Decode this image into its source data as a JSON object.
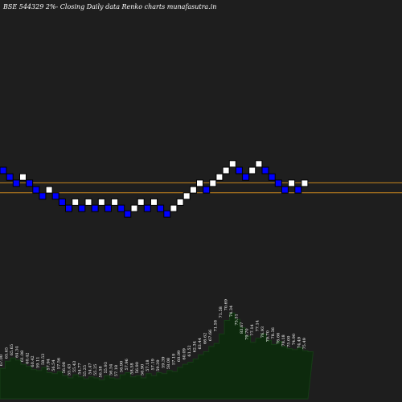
{
  "title": "BSE 544329 2%-  Closing Daily data  Renko  charts munafasutra.in",
  "colors": {
    "background": "#000000",
    "panel": "#1e1e1e",
    "up_brick": "#ffffff",
    "down_brick": "#0000ff",
    "brick_border": "#000000",
    "reference_line": "#c8861e",
    "volume_fill": "#0d2a0d",
    "volume_edge": "#163d16",
    "label_color": "#ffffff"
  },
  "chart_data": {
    "type": "renko",
    "title": "BSE 544329 2%-  Closing Daily data  Renko  charts munafasutra.in",
    "brick_size_percent": 2,
    "reference_lines": [
      66.6,
      64.5
    ],
    "bricks": [
      {
        "dir": "down",
        "level": 69.9
      },
      {
        "dir": "down",
        "level": 68.5
      },
      {
        "dir": "down",
        "level": 67.2
      },
      {
        "dir": "up",
        "level": 68.5
      },
      {
        "dir": "down",
        "level": 67.2
      },
      {
        "dir": "down",
        "level": 65.8
      },
      {
        "dir": "down",
        "level": 64.5
      },
      {
        "dir": "up",
        "level": 65.8
      },
      {
        "dir": "down",
        "level": 64.5
      },
      {
        "dir": "down",
        "level": 63.2
      },
      {
        "dir": "down",
        "level": 61.9
      },
      {
        "dir": "up",
        "level": 63.2
      },
      {
        "dir": "down",
        "level": 61.9
      },
      {
        "dir": "up",
        "level": 63.2
      },
      {
        "dir": "down",
        "level": 61.9
      },
      {
        "dir": "up",
        "level": 63.2
      },
      {
        "dir": "down",
        "level": 61.9
      },
      {
        "dir": "up",
        "level": 63.2
      },
      {
        "dir": "down",
        "level": 61.9
      },
      {
        "dir": "down",
        "level": 60.7
      },
      {
        "dir": "up",
        "level": 61.9
      },
      {
        "dir": "up",
        "level": 63.2
      },
      {
        "dir": "down",
        "level": 61.9
      },
      {
        "dir": "up",
        "level": 63.2
      },
      {
        "dir": "down",
        "level": 61.9
      },
      {
        "dir": "down",
        "level": 60.7
      },
      {
        "dir": "up",
        "level": 61.9
      },
      {
        "dir": "up",
        "level": 63.2
      },
      {
        "dir": "up",
        "level": 64.5
      },
      {
        "dir": "up",
        "level": 65.8
      },
      {
        "dir": "up",
        "level": 67.2
      },
      {
        "dir": "down",
        "level": 65.8
      },
      {
        "dir": "up",
        "level": 67.2
      },
      {
        "dir": "up",
        "level": 68.5
      },
      {
        "dir": "up",
        "level": 69.9
      },
      {
        "dir": "up",
        "level": 71.3
      },
      {
        "dir": "down",
        "level": 69.9
      },
      {
        "dir": "down",
        "level": 68.5
      },
      {
        "dir": "up",
        "level": 69.9
      },
      {
        "dir": "up",
        "level": 71.3
      },
      {
        "dir": "down",
        "level": 69.9
      },
      {
        "dir": "down",
        "level": 68.5
      },
      {
        "dir": "down",
        "level": 67.2
      },
      {
        "dir": "down",
        "level": 65.8
      },
      {
        "dir": "up",
        "level": 67.2
      },
      {
        "dir": "down",
        "level": 65.8
      },
      {
        "dir": "up",
        "level": 67.2
      }
    ],
    "price_labels": [
      "67.00",
      "65.65",
      "65.65",
      "64.34",
      "61.08",
      "60.42",
      "60.42",
      "59.11",
      "58.53",
      "57.94",
      "56.54",
      "57.56",
      "56.08",
      "55.43",
      "55.43",
      "54.77",
      "55.25",
      "54.47",
      "55.25",
      "56.58",
      "55.93",
      "56.54",
      "57.18",
      "56.90",
      "57.96",
      "58.58",
      "56.90",
      "56.90",
      "57.18",
      "57.19",
      "59.39",
      "59.39",
      "58.08",
      "57.19",
      "60.09",
      "60.09",
      "61.52",
      "62.34",
      "63.44",
      "66.62",
      "67.66",
      "71.58",
      "71.58",
      "70.69",
      "74.34",
      "75.51",
      "83.67",
      "79.70",
      "77.14",
      "77.14",
      "76.93",
      "79.70",
      "78.36",
      "76.66",
      "78.18",
      "75.00",
      "74.90",
      "74.49",
      "75.49"
    ],
    "volume": [
      0.29,
      0.36,
      0.39,
      0.37,
      0.33,
      0.31,
      0.28,
      0.27,
      0.3,
      0.25,
      0.24,
      0.26,
      0.22,
      0.2,
      0.23,
      0.21,
      0.19,
      0.21,
      0.2,
      0.18,
      0.22,
      0.2,
      0.19,
      0.23,
      0.25,
      0.21,
      0.22,
      0.2,
      0.24,
      0.22,
      0.25,
      0.24,
      0.27,
      0.26,
      0.3,
      0.33,
      0.35,
      0.38,
      0.42,
      0.45,
      0.5,
      0.53,
      0.62,
      0.75,
      0.82,
      0.76,
      0.68,
      0.6,
      0.54,
      0.58,
      0.62,
      0.56,
      0.52,
      0.55,
      0.5,
      0.48,
      0.47,
      0.49,
      0.46,
      0.45
    ]
  }
}
